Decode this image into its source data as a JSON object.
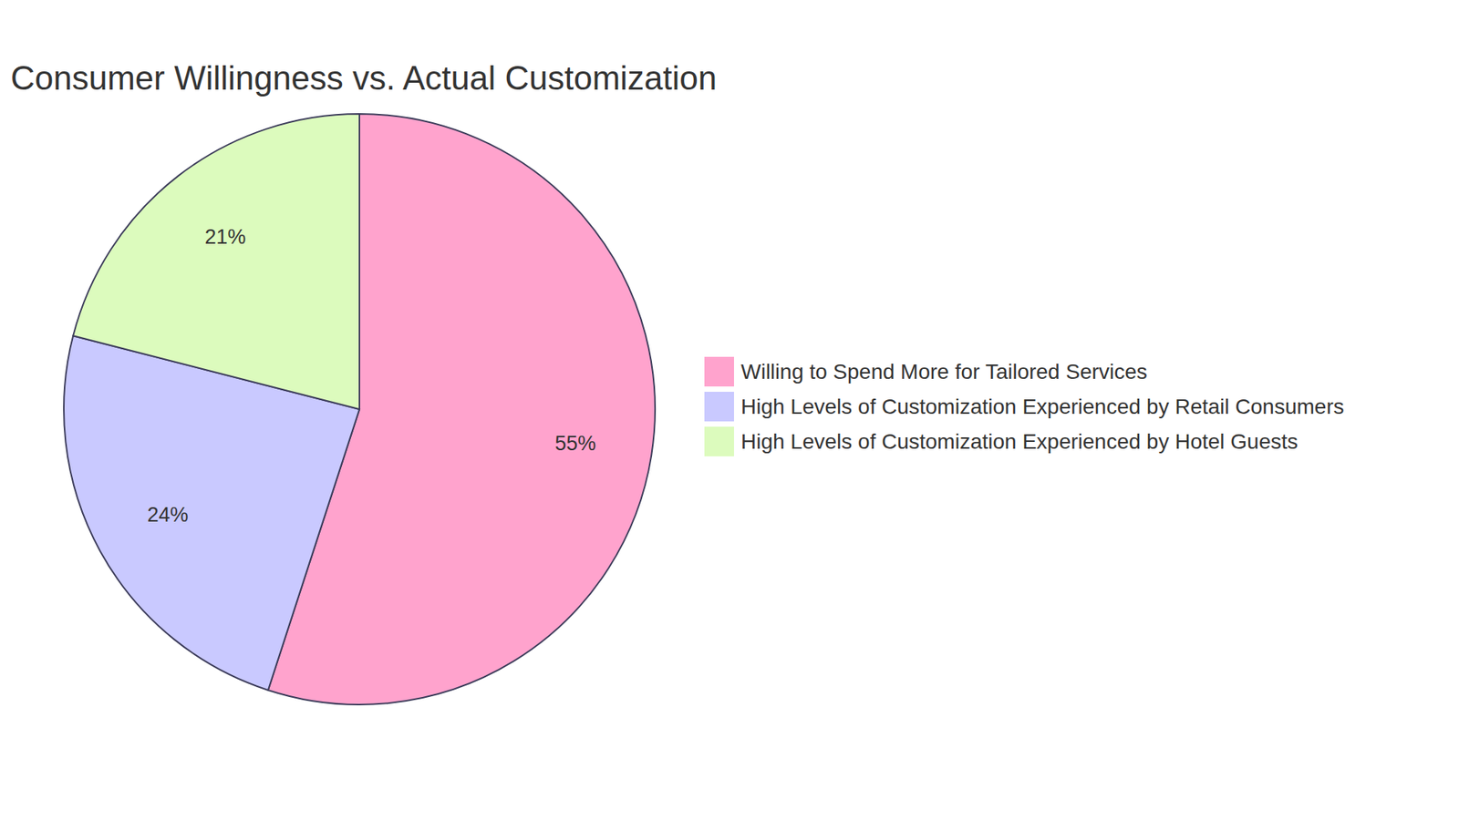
{
  "chart_data": {
    "type": "pie",
    "title": "Consumer Willingness vs. Actual Customization",
    "categories": [
      "Willing to Spend More for Tailored Services",
      "High Levels of Customization Experienced by Retail Consumers",
      "High Levels of Customization Experienced by Hotel Guests"
    ],
    "values": [
      55,
      24,
      21
    ],
    "value_labels": [
      "55%",
      "24%",
      "21%"
    ],
    "colors": [
      "#ffa3cd",
      "#c9c9ff",
      "#dcfbbd"
    ],
    "data_labels": true,
    "legend": "right"
  }
}
